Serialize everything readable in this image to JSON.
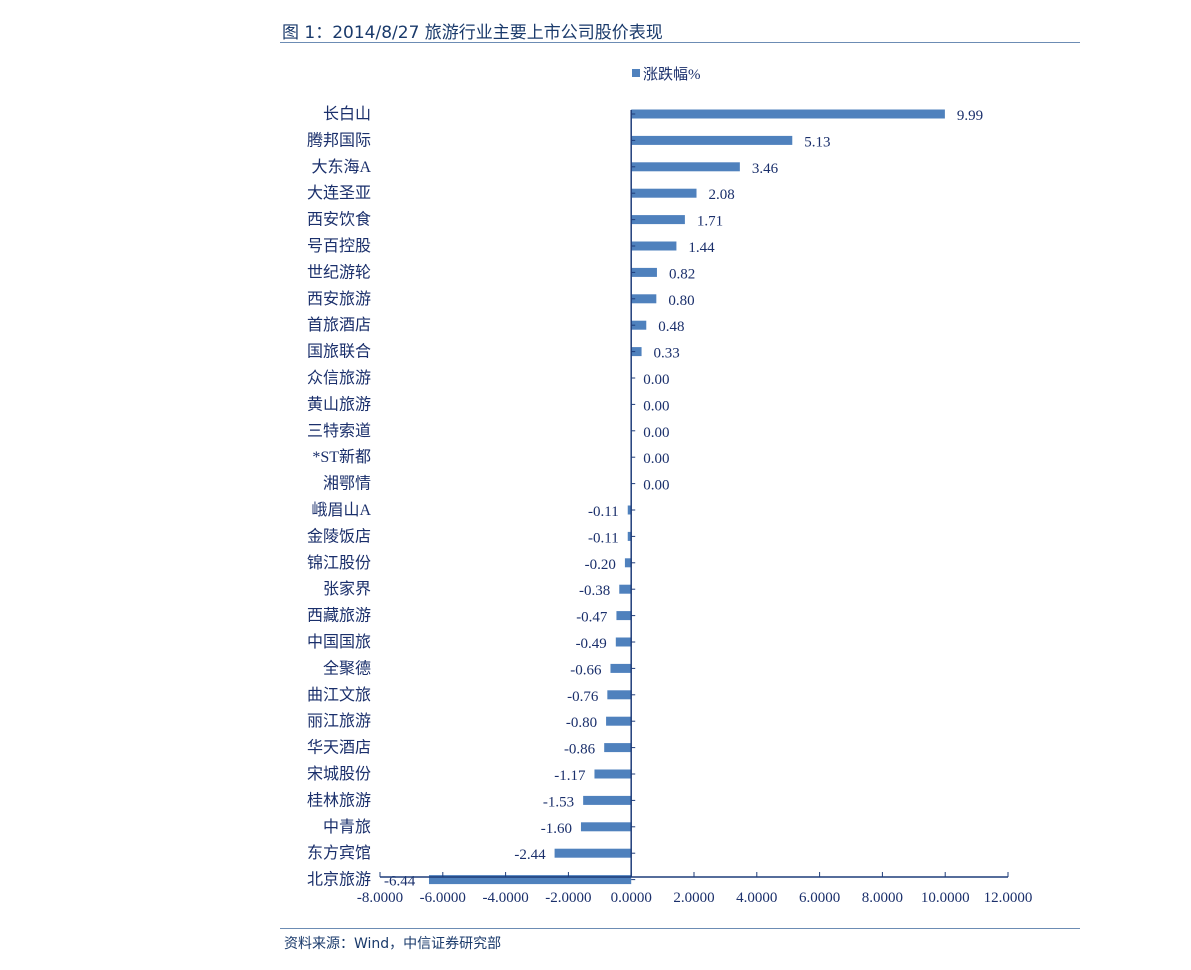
{
  "figure": {
    "title": "图 1：2014/8/27 旅游行业主要上市公司股价表现",
    "source": "资料来源：Wind，中信证券研究部"
  },
  "colors": {
    "bar": "#4f81bd",
    "axis": "#1f3d7a",
    "text": "#1a2f6b"
  },
  "chart_data": {
    "type": "bar",
    "orientation": "horizontal",
    "legend": "top-center",
    "grid": false,
    "xlim": [
      -8,
      12
    ],
    "x_ticks": [
      -8,
      -6,
      -4,
      -2,
      0,
      2,
      4,
      6,
      8,
      10,
      12
    ],
    "x_tick_labels": [
      "-8.0000",
      "-6.0000",
      "-4.0000",
      "-2.0000",
      "0.0000",
      "2.0000",
      "4.0000",
      "6.0000",
      "8.0000",
      "10.0000",
      "12.0000"
    ],
    "series": [
      {
        "name": "涨跌幅%",
        "categories": [
          "长白山",
          "腾邦国际",
          "大东海A",
          "大连圣亚",
          "西安饮食",
          "号百控股",
          "世纪游轮",
          "西安旅游",
          "首旅酒店",
          "国旅联合",
          "众信旅游",
          "黄山旅游",
          "三特索道",
          "*ST新都",
          "湘鄂情",
          "峨眉山A",
          "金陵饭店",
          "锦江股份",
          "张家界",
          "西藏旅游",
          "中国国旅",
          "全聚德",
          "曲江文旅",
          "丽江旅游",
          "华天酒店",
          "宋城股份",
          "桂林旅游",
          "中青旅",
          "东方宾馆",
          "北京旅游"
        ],
        "values": [
          9.99,
          5.13,
          3.46,
          2.08,
          1.71,
          1.44,
          0.82,
          0.8,
          0.48,
          0.33,
          0.0,
          0.0,
          0.0,
          0.0,
          0.0,
          -0.11,
          -0.11,
          -0.2,
          -0.38,
          -0.47,
          -0.49,
          -0.66,
          -0.76,
          -0.8,
          -0.86,
          -1.17,
          -1.53,
          -1.6,
          -2.44,
          -6.44
        ],
        "labels": [
          "9.99",
          "5.13",
          "3.46",
          "2.08",
          "1.71",
          "1.44",
          "0.82",
          "0.80",
          "0.48",
          "0.33",
          "0.00",
          "0.00",
          "0.00",
          "0.00",
          "0.00",
          "-0.11",
          "-0.11",
          "-0.20",
          "-0.38",
          "-0.47",
          "-0.49",
          "-0.66",
          "-0.76",
          "-0.80",
          "-0.86",
          "-1.17",
          "-1.53",
          "-1.60",
          "-2.44",
          "-6.44"
        ]
      }
    ]
  }
}
